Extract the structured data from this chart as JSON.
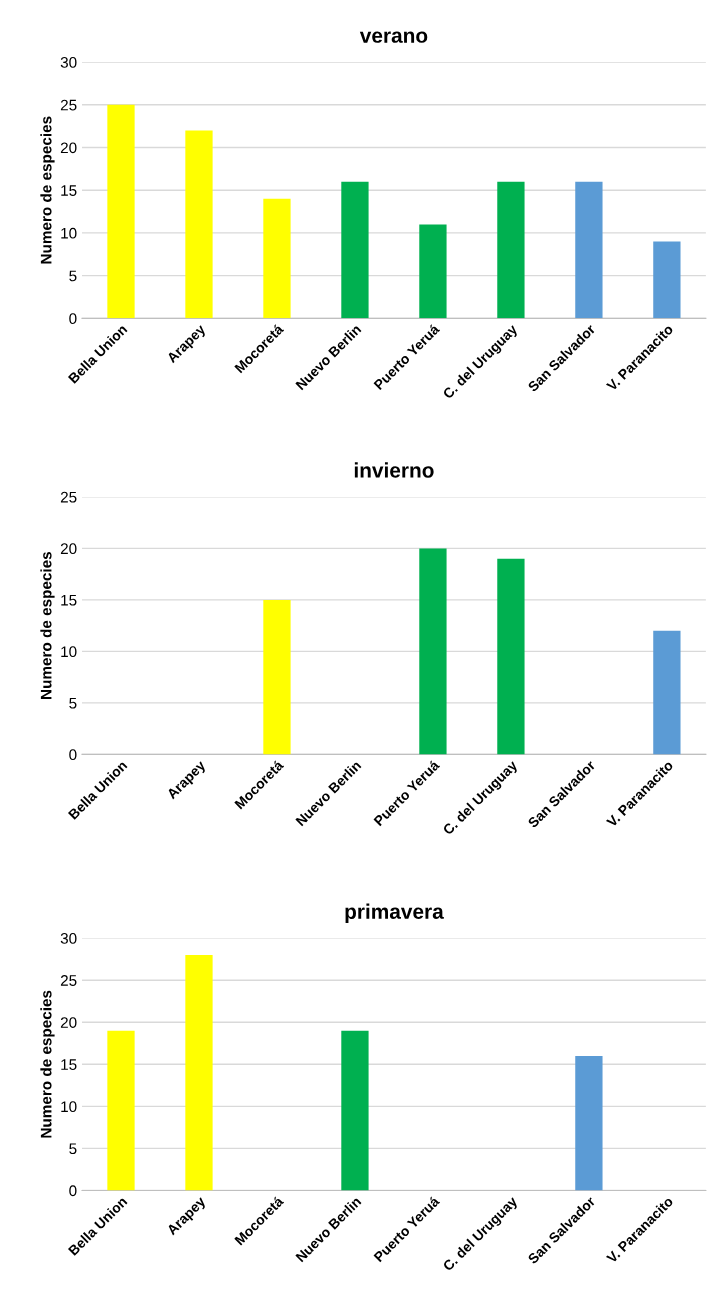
{
  "chart_data": [
    {
      "type": "bar",
      "title": "verano",
      "ylabel": "Numero de especies",
      "categories": [
        "Bella Union",
        "Arapey",
        "Mocoretá",
        "Nuevo Berlin",
        "Puerto Yeruá",
        "C. del Uruguay",
        "San Salvador",
        "V. Paranacito"
      ],
      "values": [
        25,
        22,
        14,
        16,
        11,
        16,
        16,
        9
      ],
      "colors": [
        "#ffff00",
        "#ffff00",
        "#ffff00",
        "#00b050",
        "#00b050",
        "#00b050",
        "#5b9bd5",
        "#5b9bd5"
      ],
      "ylim": [
        0,
        30
      ],
      "yticks": [
        0,
        5,
        10,
        15,
        20,
        25,
        30
      ],
      "grid": "y"
    },
    {
      "type": "bar",
      "title": "invierno",
      "ylabel": "Numero de especies",
      "categories": [
        "Bella Union",
        "Arapey",
        "Mocoretá",
        "Nuevo Berlin",
        "Puerto Yeruá",
        "C. del Uruguay",
        "San Salvador",
        "V. Paranacito"
      ],
      "values": [
        null,
        null,
        15,
        null,
        20,
        19,
        null,
        12
      ],
      "colors": [
        "#ffff00",
        "#ffff00",
        "#ffff00",
        "#00b050",
        "#00b050",
        "#00b050",
        "#5b9bd5",
        "#5b9bd5"
      ],
      "ylim": [
        0,
        25
      ],
      "yticks": [
        0,
        5,
        10,
        15,
        20,
        25
      ],
      "grid": "y"
    },
    {
      "type": "bar",
      "title": "primavera",
      "ylabel": "Numero de especies",
      "categories": [
        "Bella Union",
        "Arapey",
        "Mocoretá",
        "Nuevo Berlin",
        "Puerto Yeruá",
        "C. del Uruguay",
        "San Salvador",
        "V. Paranacito"
      ],
      "values": [
        19,
        28,
        null,
        19,
        null,
        null,
        16,
        null
      ],
      "colors": [
        "#ffff00",
        "#ffff00",
        "#ffff00",
        "#00b050",
        "#00b050",
        "#00b050",
        "#5b9bd5",
        "#5b9bd5"
      ],
      "ylim": [
        0,
        30
      ],
      "yticks": [
        0,
        5,
        10,
        15,
        20,
        25,
        30
      ],
      "grid": "y"
    }
  ]
}
